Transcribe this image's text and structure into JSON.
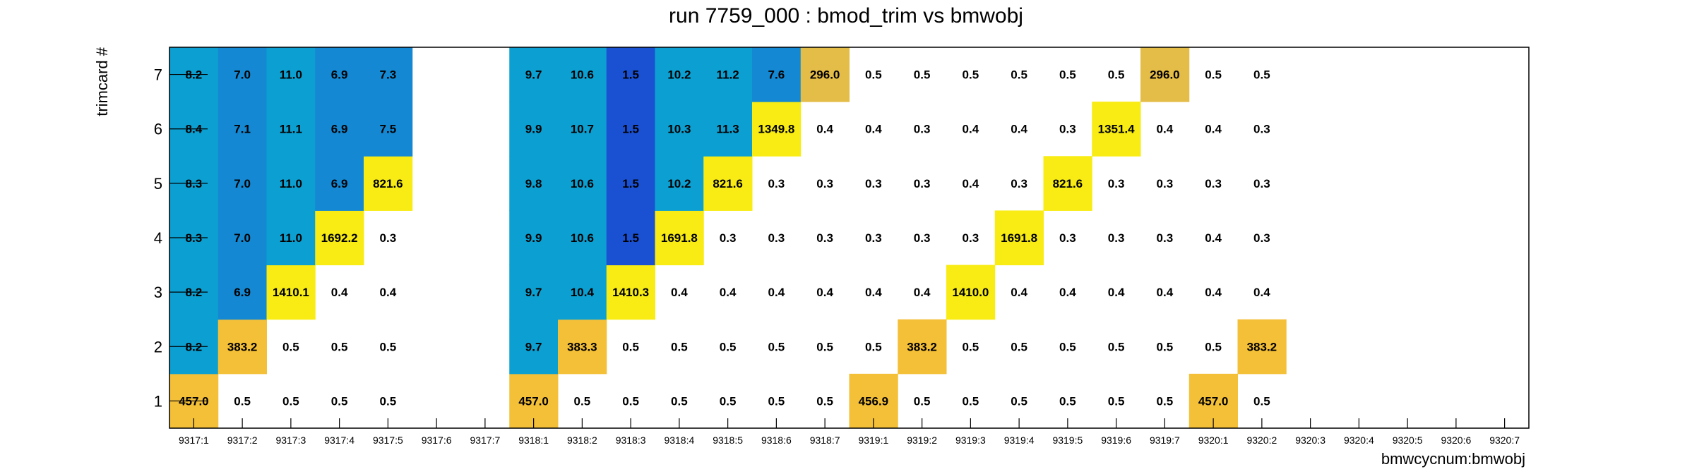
{
  "chart_data": {
    "type": "heatmap",
    "title": "run 7759_000 : bmod_trim vs bmwobj",
    "xlabel": "bmwcycnum:bmwobj",
    "ylabel": "trimcard #",
    "x_categories": [
      "9317:1",
      "9317:2",
      "9317:3",
      "9317:4",
      "9317:5",
      "9317:6",
      "9317:7",
      "9318:1",
      "9318:2",
      "9318:3",
      "9318:4",
      "9318:5",
      "9318:6",
      "9318:7",
      "9319:1",
      "9319:2",
      "9319:3",
      "9319:4",
      "9319:5",
      "9319:6",
      "9319:7",
      "9320:1",
      "9320:2",
      "9320:3",
      "9320:4",
      "9320:5",
      "9320:6",
      "9320:7"
    ],
    "y_categories": [
      "1",
      "2",
      "3",
      "4",
      "5",
      "6",
      "7"
    ],
    "values": [
      [
        "457.0",
        "0.5",
        "0.5",
        "0.5",
        "0.5",
        null,
        null,
        "457.0",
        "0.5",
        "0.5",
        "0.5",
        "0.5",
        "0.5",
        "0.5",
        "456.9",
        "0.5",
        "0.5",
        "0.5",
        "0.5",
        "0.5",
        "0.5",
        "457.0",
        "0.5",
        null,
        null,
        null,
        null,
        null
      ],
      [
        "8.2",
        "383.2",
        "0.5",
        "0.5",
        "0.5",
        null,
        null,
        "9.7",
        "383.3",
        "0.5",
        "0.5",
        "0.5",
        "0.5",
        "0.5",
        "0.5",
        "383.2",
        "0.5",
        "0.5",
        "0.5",
        "0.5",
        "0.5",
        "0.5",
        "383.2",
        null,
        null,
        null,
        null,
        null
      ],
      [
        "8.2",
        "6.9",
        "1410.1",
        "0.4",
        "0.4",
        null,
        null,
        "9.7",
        "10.4",
        "1410.3",
        "0.4",
        "0.4",
        "0.4",
        "0.4",
        "0.4",
        "0.4",
        "1410.0",
        "0.4",
        "0.4",
        "0.4",
        "0.4",
        "0.4",
        "0.4",
        null,
        null,
        null,
        null,
        null
      ],
      [
        "8.3",
        "7.0",
        "11.0",
        "1692.2",
        "0.3",
        null,
        null,
        "9.9",
        "10.6",
        "1.5",
        "1691.8",
        "0.3",
        "0.3",
        "0.3",
        "0.3",
        "0.3",
        "0.3",
        "1691.8",
        "0.3",
        "0.3",
        "0.3",
        "0.4",
        "0.3",
        null,
        null,
        null,
        null,
        null
      ],
      [
        "8.3",
        "7.0",
        "11.0",
        "6.9",
        "821.6",
        null,
        null,
        "9.8",
        "10.6",
        "1.5",
        "10.2",
        "821.6",
        "0.3",
        "0.3",
        "0.3",
        "0.3",
        "0.4",
        "0.3",
        "821.6",
        "0.3",
        "0.3",
        "0.3",
        "0.3",
        null,
        null,
        null,
        null,
        null
      ],
      [
        "8.4",
        "7.1",
        "11.1",
        "6.9",
        "7.5",
        null,
        null,
        "9.9",
        "10.7",
        "1.5",
        "10.3",
        "11.3",
        "1349.8",
        "0.4",
        "0.4",
        "0.3",
        "0.4",
        "0.4",
        "0.3",
        "1351.4",
        "0.4",
        "0.4",
        "0.3",
        null,
        null,
        null,
        null,
        null
      ],
      [
        "8.2",
        "7.0",
        "11.0",
        "6.9",
        "7.3",
        null,
        null,
        "9.7",
        "10.6",
        "1.5",
        "10.2",
        "11.2",
        "7.6",
        "296.0",
        "0.5",
        "0.5",
        "0.5",
        "0.5",
        "0.5",
        "0.5",
        "296.0",
        "0.5",
        "0.5",
        null,
        null,
        null,
        null,
        null
      ]
    ],
    "color_scale": [
      {
        "max": 1,
        "color": "#ffffff"
      },
      {
        "max": 2,
        "color": "#1a50d2"
      },
      {
        "max": 8,
        "color": "#1488d2"
      },
      {
        "max": 12,
        "color": "#0ca0d2"
      },
      {
        "max": 350,
        "color": "#e4bc48"
      },
      {
        "max": 500,
        "color": "#f4c038"
      },
      {
        "max": 100000,
        "color": "#f8ec14"
      }
    ],
    "grid": false,
    "colors": {
      "frame": "#000000",
      "text": "#000000"
    }
  }
}
